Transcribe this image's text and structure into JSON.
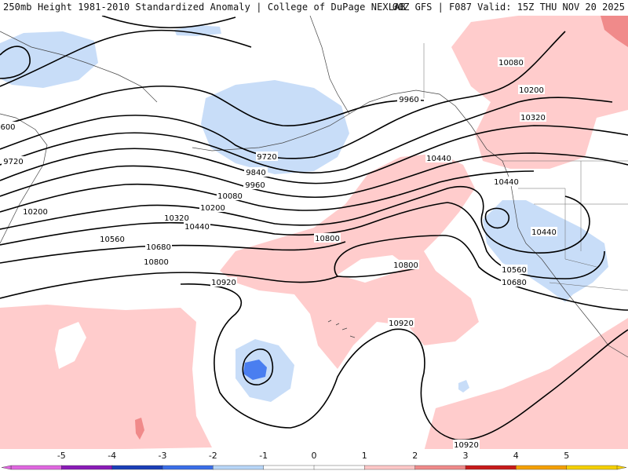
{
  "title_left": "250mb Height 1981-2010 Standardized Anomaly | College of DuPage NEXLAB",
  "title_right": "00Z GFS | F087 Valid: 15Z THU NOV 20 2025",
  "contour_labels": [
    "9720",
    "9720",
    "9840",
    "9960",
    "9960",
    "10080",
    "10080",
    "10200",
    "10200",
    "10200",
    "10320",
    "10320",
    "10440",
    "10440",
    "10440",
    "10440",
    "10560",
    "10560",
    "10680",
    "10680",
    "10800",
    "10800",
    "10800",
    "10920",
    "10920",
    "10920",
    "600"
  ],
  "colorbar": {
    "labels": [
      "-5",
      "-4",
      "-3",
      "-2",
      "-1",
      "0",
      "1",
      "2",
      "3",
      "4",
      "5"
    ],
    "colors": [
      "#e066e0",
      "#8a1ab8",
      "#1a3fb8",
      "#3a6ee8",
      "#b8d6f8",
      "#ffffff",
      "#ffffff",
      "#ffc8c8",
      "#f08a8a",
      "#c81a1a",
      "#f5a000",
      "#f5d000"
    ]
  }
}
